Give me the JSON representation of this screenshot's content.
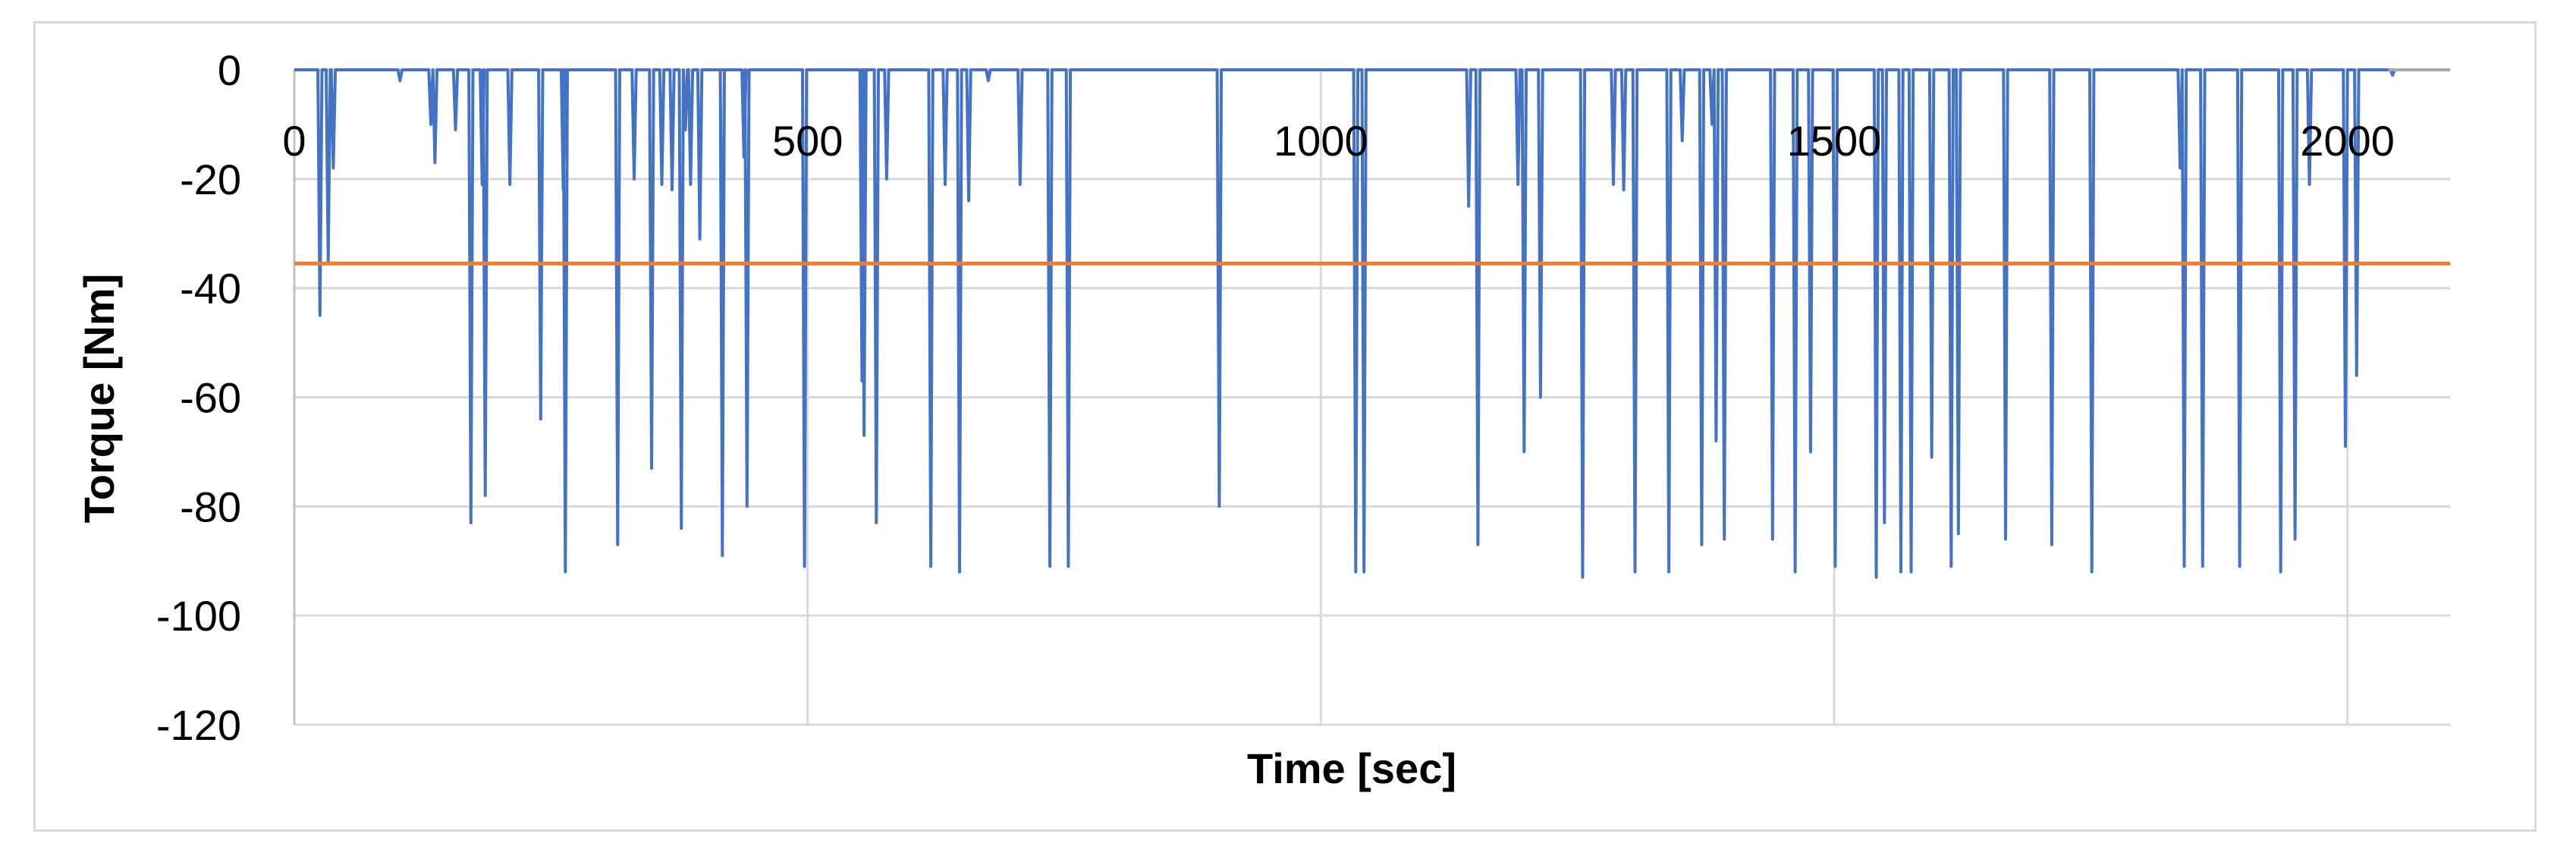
{
  "chart_data": {
    "type": "line",
    "title": "",
    "xlabel": "Time [sec]",
    "ylabel": "Torque [Nm]",
    "xlim": [
      0,
      2100
    ],
    "ylim": [
      -120,
      0
    ],
    "x_ticks": [
      0,
      500,
      1000,
      1500,
      2000
    ],
    "y_ticks": [
      0,
      -20,
      -40,
      -60,
      -80,
      -100,
      -120
    ],
    "x_tick_labels": [
      "0",
      "500",
      "1000",
      "1500",
      "2000"
    ],
    "y_tick_labels": [
      "0",
      "-20",
      "-40",
      "-60",
      "-80",
      "-100",
      "-120"
    ],
    "grid": true,
    "legend": "none",
    "series": [
      {
        "color": "#4472c4",
        "spikes": [
          [
            25,
            -45
          ],
          [
            33,
            -35
          ],
          [
            38,
            -18
          ],
          [
            103,
            -2
          ],
          [
            133,
            -10
          ],
          [
            137,
            -17
          ],
          [
            157,
            -11
          ],
          [
            172,
            -83
          ],
          [
            183,
            -21
          ],
          [
            186,
            -78
          ],
          [
            210,
            -21
          ],
          [
            240,
            -64
          ],
          [
            262,
            -22
          ],
          [
            264,
            -92
          ],
          [
            315,
            -87
          ],
          [
            331,
            -20
          ],
          [
            348,
            -73
          ],
          [
            358,
            -21
          ],
          [
            368,
            -22
          ],
          [
            377,
            -84
          ],
          [
            381,
            -11
          ],
          [
            386,
            -21
          ],
          [
            395,
            -31
          ],
          [
            417,
            -56
          ],
          [
            417,
            -89
          ],
          [
            438,
            -16
          ],
          [
            441,
            -80
          ],
          [
            497,
            -91
          ],
          [
            553,
            -57
          ],
          [
            555,
            -67
          ],
          [
            567,
            -83
          ],
          [
            577,
            -20
          ],
          [
            620,
            -91
          ],
          [
            634,
            -21
          ],
          [
            648,
            -92
          ],
          [
            657,
            -24
          ],
          [
            676,
            -2
          ],
          [
            707,
            -21
          ],
          [
            736,
            -91
          ],
          [
            754,
            -91
          ],
          [
            901,
            -80
          ],
          [
            1034,
            -92
          ],
          [
            1042,
            -92
          ],
          [
            1144,
            -25
          ],
          [
            1153,
            -87
          ],
          [
            1192,
            -21
          ],
          [
            1198,
            -70
          ],
          [
            1214,
            -60
          ],
          [
            1255,
            -93
          ],
          [
            1285,
            -21
          ],
          [
            1295,
            -22
          ],
          [
            1306,
            -92
          ],
          [
            1339,
            -92
          ],
          [
            1352,
            -13
          ],
          [
            1371,
            -87
          ],
          [
            1381,
            -10
          ],
          [
            1385,
            -68
          ],
          [
            1393,
            -86
          ],
          [
            1440,
            -86
          ],
          [
            1462,
            -92
          ],
          [
            1477,
            -70
          ],
          [
            1501,
            -91
          ],
          [
            1541,
            -93
          ],
          [
            1549,
            -83
          ],
          [
            1565,
            -92
          ],
          [
            1575,
            -92
          ],
          [
            1595,
            -71
          ],
          [
            1614,
            -91
          ],
          [
            1621,
            -85
          ],
          [
            1667,
            -86
          ],
          [
            1712,
            -87
          ],
          [
            1751,
            -92
          ],
          [
            1837,
            -18
          ],
          [
            1841,
            -91
          ],
          [
            1859,
            -91
          ],
          [
            1895,
            -91
          ],
          [
            1935,
            -92
          ],
          [
            1949,
            -86
          ],
          [
            1963,
            -21
          ],
          [
            1998,
            -69
          ],
          [
            2009,
            -56
          ],
          [
            2044,
            -1
          ]
        ]
      },
      {
        "color": "#ed7d31",
        "constant": -35.5
      }
    ]
  }
}
